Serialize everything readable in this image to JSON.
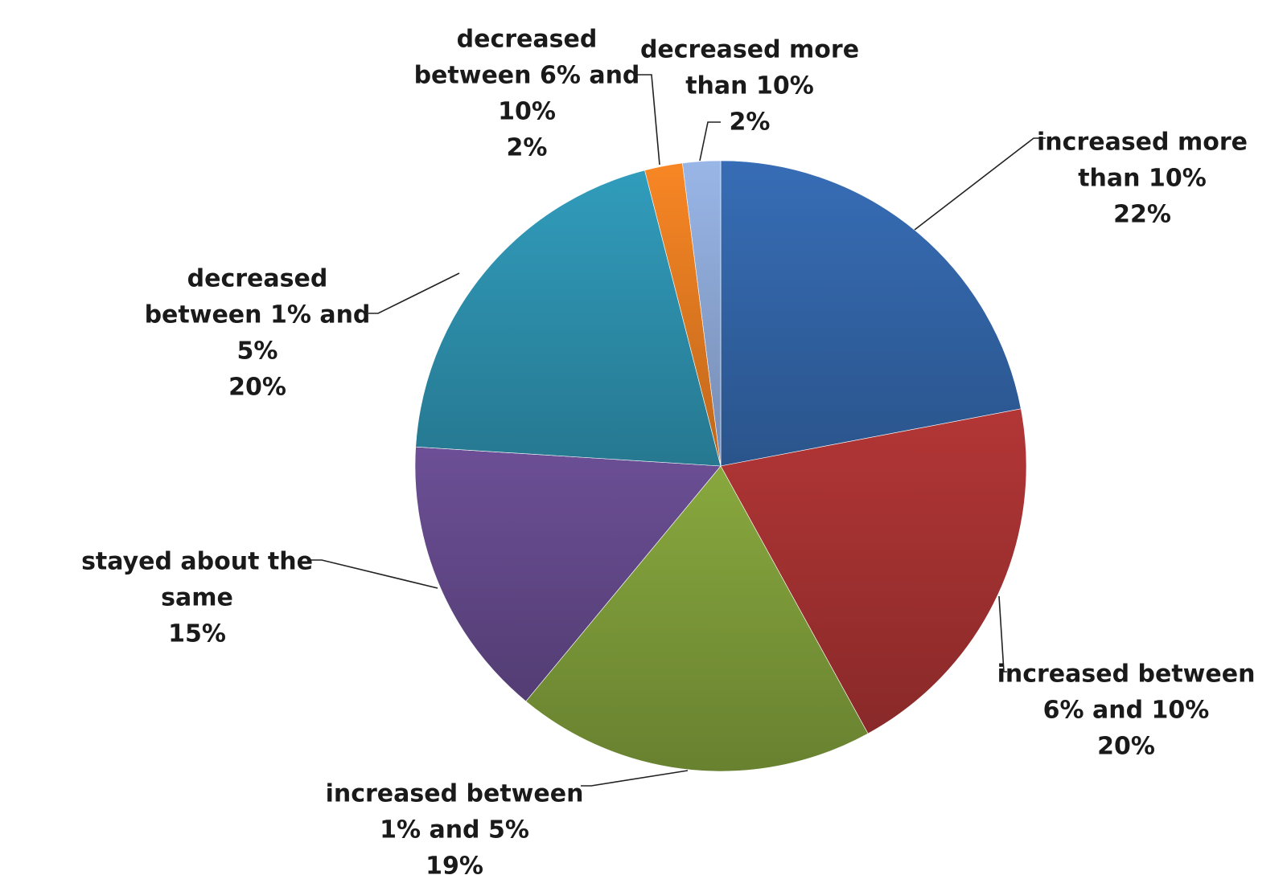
{
  "chart_data": {
    "type": "pie",
    "title": "",
    "start_angle_deg": 0,
    "direction": "clockwise",
    "slices": [
      {
        "label_lines": [
          "increased more",
          "than 10%"
        ],
        "value": 22,
        "value_label": "22%",
        "color": "#3366aa"
      },
      {
        "label_lines": [
          "increased between",
          "6% and 10%"
        ],
        "value": 20,
        "value_label": "20%",
        "color": "#a73232"
      },
      {
        "label_lines": [
          "increased between",
          "1% and 5%"
        ],
        "value": 19,
        "value_label": "19%",
        "color": "#7f9d3a"
      },
      {
        "label_lines": [
          "stayed about the",
          "same"
        ],
        "value": 15,
        "value_label": "15%",
        "color": "#654a8c"
      },
      {
        "label_lines": [
          "decreased",
          "between 1% and",
          "5%"
        ],
        "value": 20,
        "value_label": "20%",
        "color": "#2e92b0"
      },
      {
        "label_lines": [
          "decreased",
          "between 6% and",
          "10%"
        ],
        "value": 2,
        "value_label": "2%",
        "color": "#e87d22"
      },
      {
        "label_lines": [
          "decreased more",
          "than 10%"
        ],
        "value": 2,
        "value_label": "2%",
        "color": "#8faad8"
      }
    ]
  }
}
